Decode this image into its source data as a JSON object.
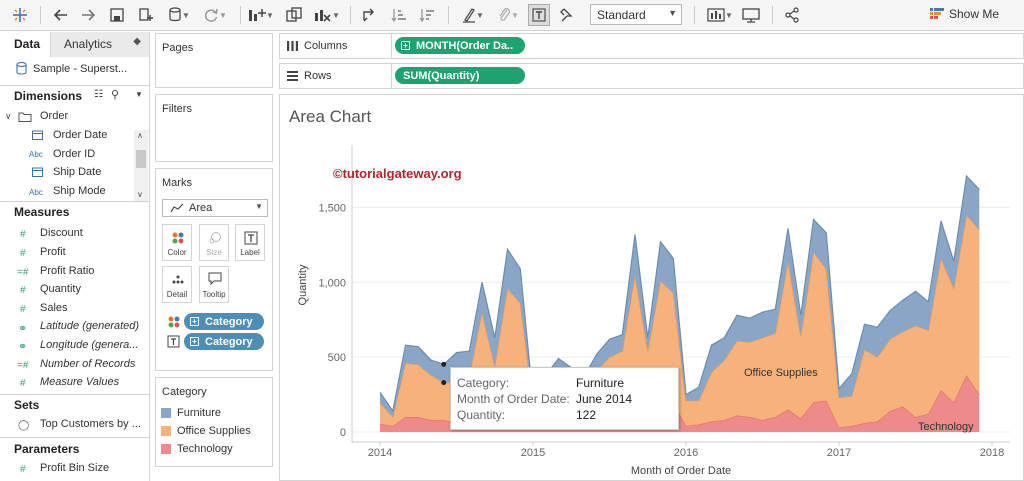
{
  "toolbar": {
    "icons": [
      "tableau-logo-icon",
      "undo-icon",
      "redo-icon",
      "save-icon",
      "new-datasource-icon",
      "pause-updates-icon",
      "refresh-icon",
      "new-worksheet-icon",
      "duplicate-icon",
      "clear-sheet-icon",
      "swap-icon",
      "sort-asc-icon",
      "sort-desc-icon",
      "highlight-icon",
      "group-icon",
      "show-labels-icon",
      "fix-axes-icon",
      "view-cards-icon",
      "presentation-icon",
      "share-icon",
      "show-me-icon"
    ],
    "fit_value": "Standard",
    "show_me_label": "Show Me"
  },
  "left_pane": {
    "tabs": [
      "Data",
      "Analytics"
    ],
    "datasource": "Sample - Superst...",
    "dimensions_title": "Dimensions",
    "dim_folder": "Order",
    "dimensions": [
      {
        "type": "date",
        "label": "Order Date"
      },
      {
        "type": "Abc",
        "label": "Order ID"
      },
      {
        "type": "date",
        "label": "Ship Date"
      },
      {
        "type": "Abc",
        "label": "Ship Mode"
      }
    ],
    "measures_title": "Measures",
    "measures": [
      {
        "type": "#",
        "label": "Discount",
        "italic": false
      },
      {
        "type": "#",
        "label": "Profit",
        "italic": false
      },
      {
        "type": "=#",
        "label": "Profit Ratio",
        "italic": false
      },
      {
        "type": "#",
        "label": "Quantity",
        "italic": false
      },
      {
        "type": "#",
        "label": "Sales",
        "italic": false
      },
      {
        "type": "globe",
        "label": "Latitude (generated)",
        "italic": true
      },
      {
        "type": "globe",
        "label": "Longitude (genera...",
        "italic": true
      },
      {
        "type": "=#",
        "label": "Number of Records",
        "italic": true
      },
      {
        "type": "#",
        "label": "Measure Values",
        "italic": true
      }
    ],
    "sets_title": "Sets",
    "sets": [
      "Top Customers by ..."
    ],
    "parameters_title": "Parameters",
    "parameters": [
      "Profit Bin Size"
    ]
  },
  "cards": {
    "pages_title": "Pages",
    "filters_title": "Filters",
    "marks_title": "Marks",
    "mark_type": "Area",
    "mark_buttons": [
      "Color",
      "Size",
      "Label",
      "Detail",
      "Tooltip"
    ],
    "mark_pills": [
      "Category",
      "Category"
    ],
    "legend_title": "Category",
    "legend": [
      {
        "label": "Furniture",
        "color": "#8aa6c6"
      },
      {
        "label": "Office Supplies",
        "color": "#f6b27a"
      },
      {
        "label": "Technology",
        "color": "#ee8a8a"
      }
    ]
  },
  "shelves": {
    "columns_label": "Columns",
    "columns_pill": "MONTH(Order Da..",
    "rows_label": "Rows",
    "rows_pill": "SUM(Quantity)"
  },
  "viz": {
    "title": "Area Chart",
    "watermark": "©tutorialgateway.org",
    "tooltip": [
      {
        "key": "Category:",
        "value": "Furniture"
      },
      {
        "key": "Month of Order Date:",
        "value": "June 2014"
      },
      {
        "key": "Quantity:",
        "value": "122"
      }
    ]
  },
  "chart_data": {
    "type": "area",
    "stacked": true,
    "xlabel": "Month of Order Date",
    "ylabel": "Quantity",
    "x_ticks": [
      "2014",
      "2015",
      "2016",
      "2017",
      "2018"
    ],
    "y_ticks": [
      "0",
      "500",
      "1,000",
      "1,500"
    ],
    "ylim": [
      0,
      1850
    ],
    "grid": true,
    "x_start": "2014-01",
    "months": 48,
    "series": [
      {
        "name": "Technology",
        "color": "#ee8a8a",
        "values": [
          55,
          40,
          100,
          100,
          80,
          80,
          60,
          70,
          160,
          90,
          150,
          140,
          15,
          30,
          30,
          40,
          60,
          60,
          50,
          90,
          210,
          90,
          160,
          200,
          40,
          50,
          70,
          80,
          110,
          100,
          80,
          100,
          150,
          90,
          200,
          210,
          30,
          40,
          60,
          70,
          140,
          170,
          100,
          120,
          280,
          200,
          380,
          250
        ]
      },
      {
        "name": "Office Supplies",
        "color": "#f6b27a",
        "values": [
          140,
          60,
          360,
          350,
          300,
          250,
          280,
          300,
          640,
          350,
          810,
          720,
          170,
          290,
          350,
          280,
          240,
          350,
          450,
          450,
          840,
          450,
          850,
          730,
          170,
          160,
          330,
          400,
          500,
          500,
          550,
          560,
          990,
          550,
          1000,
          880,
          200,
          200,
          490,
          430,
          480,
          500,
          610,
          560,
          880,
          760,
          1070,
          1100
        ]
      },
      {
        "name": "Furniture",
        "color": "#8aa6c6",
        "values": [
          70,
          40,
          120,
          120,
          100,
          122,
          190,
          170,
          200,
          190,
          260,
          230,
          40,
          60,
          110,
          110,
          70,
          110,
          120,
          110,
          270,
          90,
          260,
          230,
          40,
          90,
          180,
          150,
          170,
          160,
          170,
          160,
          220,
          140,
          220,
          240,
          60,
          150,
          170,
          200,
          190,
          210,
          230,
          190,
          250,
          180,
          260,
          270
        ]
      }
    ],
    "annotations": [
      "Office Supplies",
      "Technology"
    ]
  }
}
